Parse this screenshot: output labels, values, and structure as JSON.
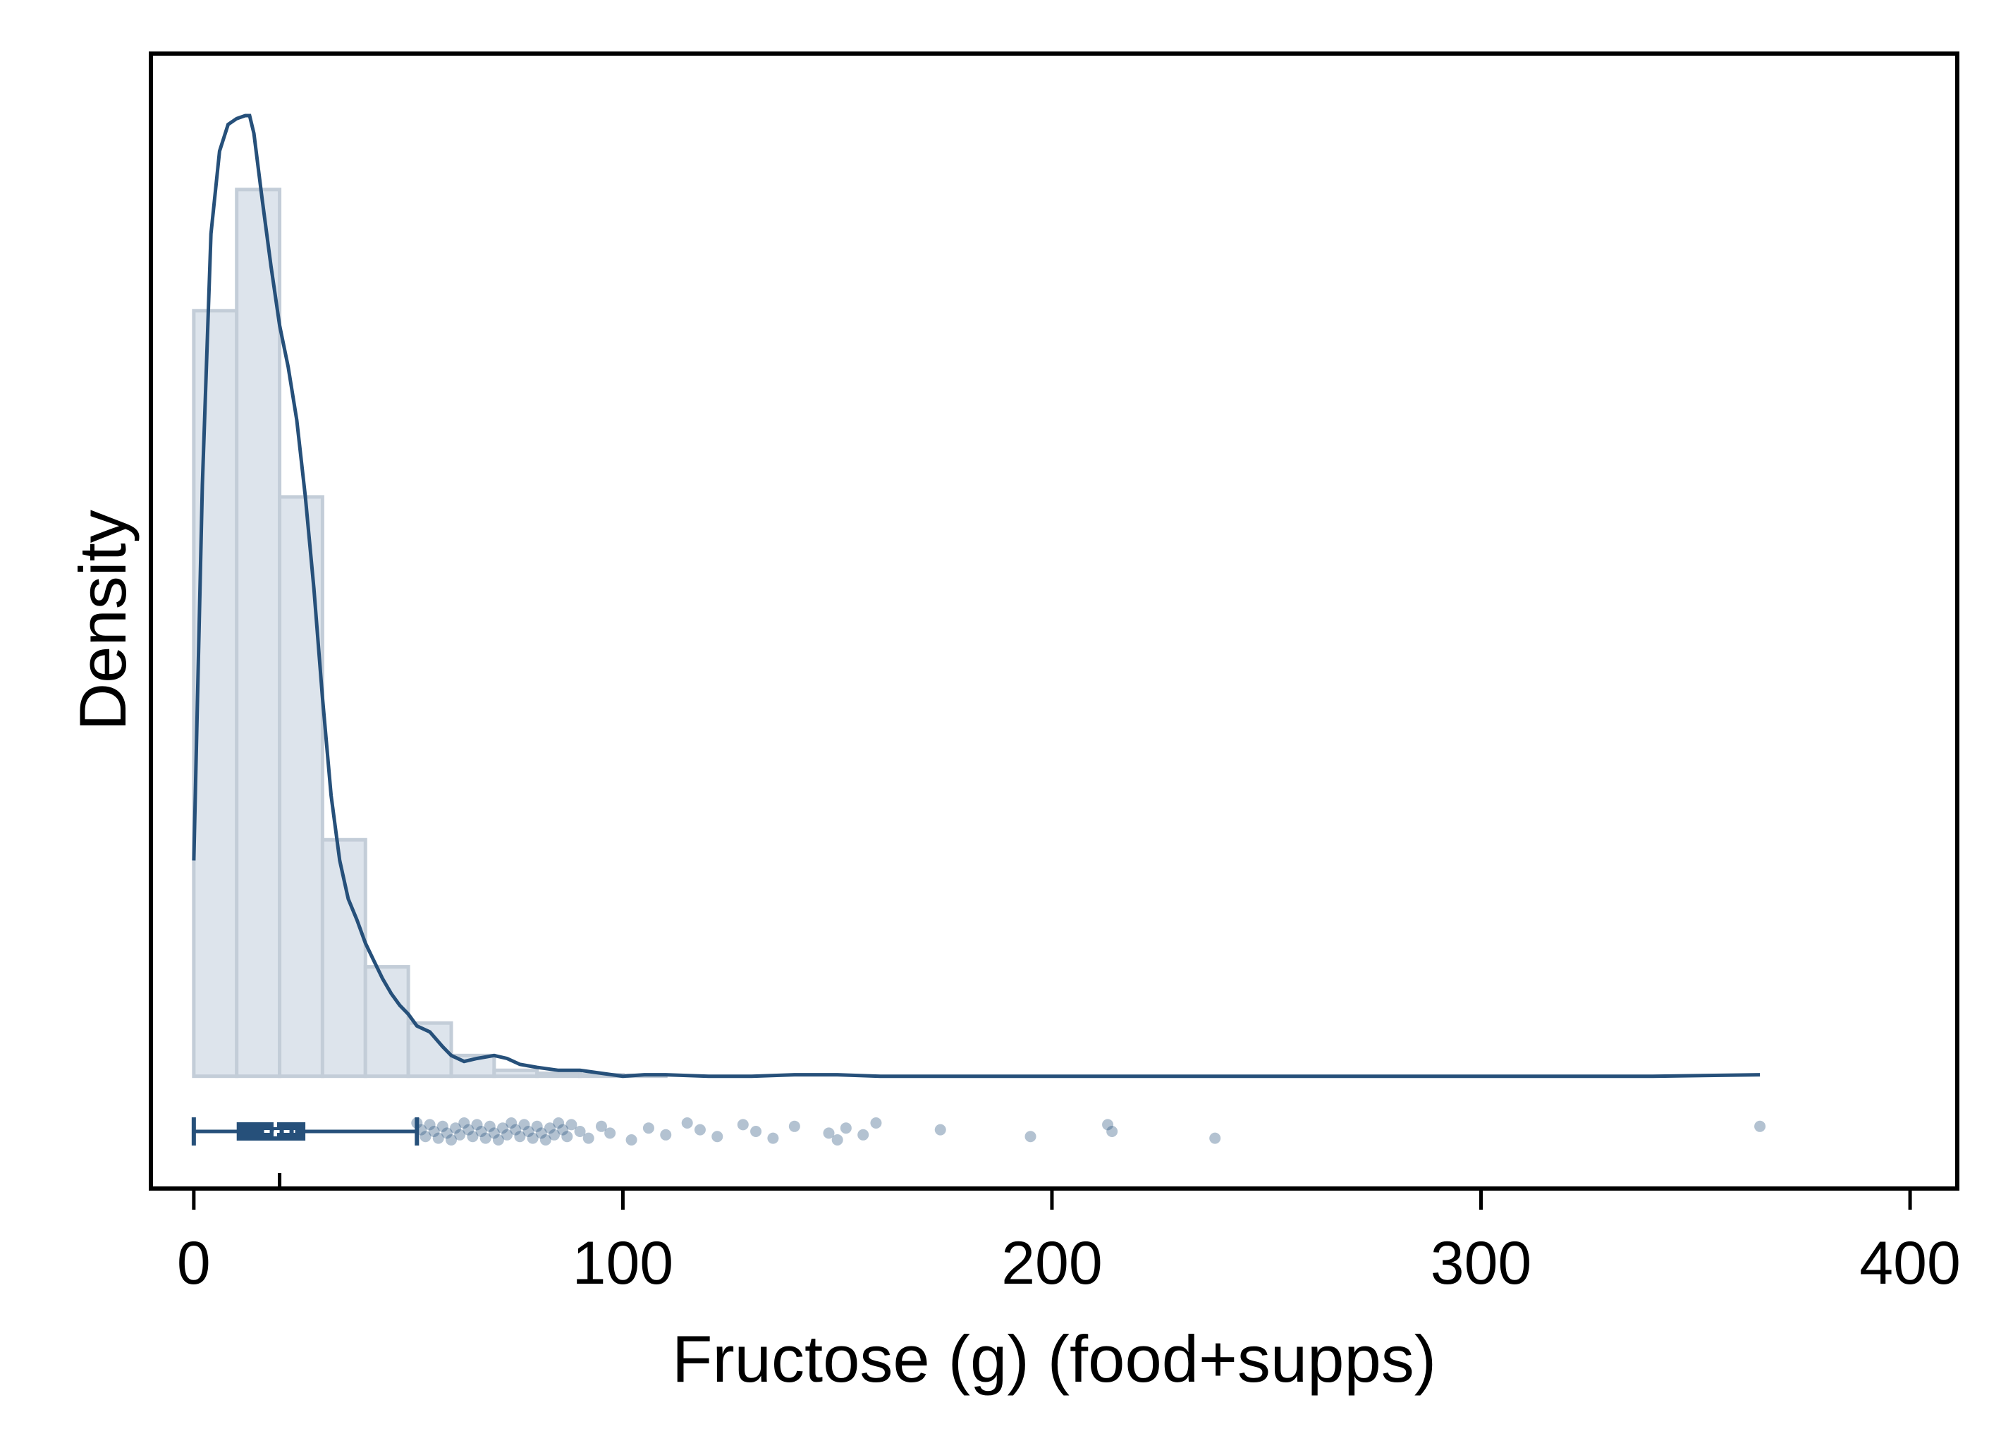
{
  "chart_data": {
    "type": "histogram",
    "xlabel": "Fructose (g) (food+supps)",
    "ylabel": "Density",
    "xlim": [
      -10,
      411
    ],
    "ylim": [
      -0.0038,
      0.0346
    ],
    "x_ticks": [
      0,
      100,
      200,
      300,
      400
    ],
    "y_tick_labels_shown": false,
    "grid": false,
    "legend": "none",
    "colors": {
      "bar_fill": "#dde4ec",
      "bar_stroke": "#c3cdd8",
      "line": "#26507a",
      "points": "#26507a"
    },
    "histogram": {
      "bin_width": 10,
      "bins_start": [
        0,
        10,
        20,
        30,
        40,
        50,
        60,
        70,
        80,
        90,
        100
      ],
      "density": [
        0.0259,
        0.03,
        0.0196,
        0.008,
        0.0037,
        0.0018,
        0.0007,
        0.0002,
        0.0001,
        5e-05,
        3e-05
      ]
    },
    "kde": {
      "x": [
        0,
        2,
        4,
        6,
        8,
        10,
        12,
        13,
        14,
        16,
        18,
        20,
        22,
        24,
        26,
        28,
        30,
        32,
        34,
        36,
        38,
        40,
        42,
        44,
        46,
        48,
        50,
        52,
        55,
        58,
        60,
        63,
        66,
        70,
        73,
        76,
        80,
        85,
        90,
        95,
        100,
        105,
        110,
        120,
        130,
        140,
        150,
        160,
        170,
        180,
        200,
        220,
        240,
        260,
        300,
        340,
        365
      ],
      "y": [
        0.0073,
        0.02,
        0.0285,
        0.0313,
        0.0322,
        0.0324,
        0.0325,
        0.0325,
        0.0319,
        0.0296,
        0.0274,
        0.0254,
        0.024,
        0.0222,
        0.0196,
        0.0165,
        0.0128,
        0.0095,
        0.0073,
        0.006,
        0.0053,
        0.0045,
        0.0039,
        0.0033,
        0.0028,
        0.0024,
        0.0021,
        0.0017,
        0.0015,
        0.001,
        0.0007,
        0.0005,
        0.0006,
        0.0007,
        0.0006,
        0.0004,
        0.0003,
        0.0002,
        0.0002,
        0.0001,
        0.0,
        5e-05,
        5e-05,
        0.0,
        0.0,
        5e-05,
        5e-05,
        0.0,
        0.0,
        0.0,
        0.0,
        0.0,
        0.0,
        0.0,
        0.0,
        0.0,
        5e-05
      ]
    },
    "boxplot": {
      "min": 0,
      "q1": 10,
      "median": 19,
      "q3": 26,
      "whisker_high": 52,
      "mean": 20,
      "outliers": [
        52,
        53,
        54,
        55,
        56,
        57,
        58,
        59,
        60,
        61,
        62,
        63,
        64,
        65,
        66,
        67,
        68,
        69,
        70,
        71,
        72,
        73,
        74,
        75,
        76,
        77,
        78,
        79,
        80,
        81,
        82,
        83,
        84,
        85,
        86,
        87,
        88,
        90,
        92,
        95,
        97,
        102,
        106,
        110,
        115,
        118,
        122,
        128,
        131,
        135,
        140,
        148,
        150,
        152,
        156,
        159,
        174,
        195,
        213,
        214,
        238,
        365
      ]
    }
  }
}
